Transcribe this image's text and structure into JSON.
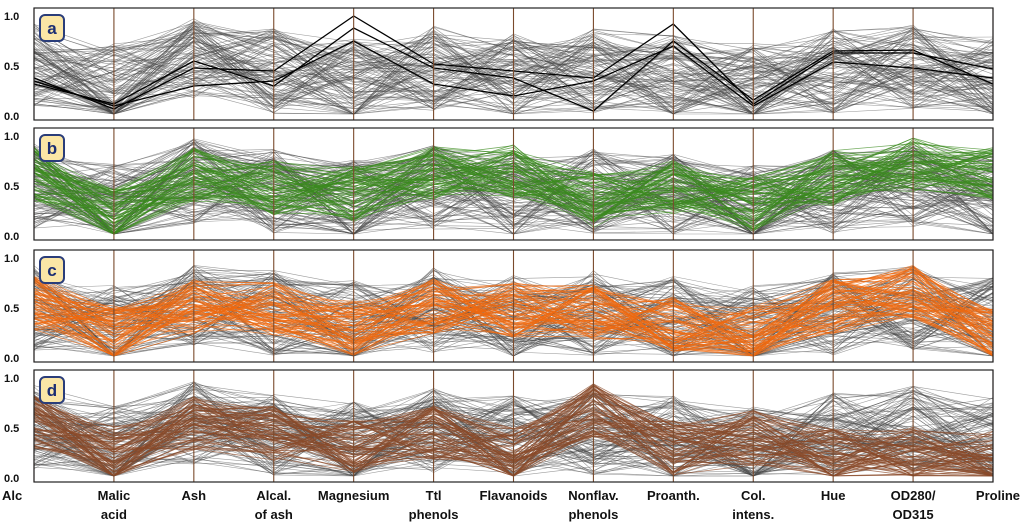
{
  "chart_data": {
    "type": "parallel-coordinates",
    "dimensions": [
      [
        "Alc"
      ],
      [
        "Malic",
        "acid"
      ],
      [
        "Ash"
      ],
      [
        "Alcal.",
        "of ash"
      ],
      [
        "Magnesium"
      ],
      [
        "Ttl",
        "phenols"
      ],
      [
        "Flavanoids"
      ],
      [
        "Nonflav.",
        "phenols"
      ],
      [
        "Proanth."
      ],
      [
        "Col.",
        "intens."
      ],
      [
        "Hue"
      ],
      [
        "OD280/",
        "OD315"
      ],
      [
        "Proline"
      ]
    ],
    "ylim": [
      0.0,
      1.0
    ],
    "yticks": [
      "0.0",
      "0.5",
      "1.0"
    ],
    "colors": {
      "context": "#4a4a4a",
      "green": "#3a8a1e",
      "orange": "#f06a10",
      "brown": "#8a4a2a",
      "black": "#000000",
      "badge_fill": "#fbe6a6",
      "badge_border": "#2a3d7a"
    },
    "panels": [
      {
        "label": "a",
        "highlight_color": "#000000",
        "highlight_series": [
          [
            0.38,
            0.07,
            0.48,
            0.45,
            1.0,
            0.52,
            0.45,
            0.38,
            0.92,
            0.12,
            0.63,
            0.63,
            0.47
          ],
          [
            0.32,
            0.12,
            0.55,
            0.3,
            0.88,
            0.48,
            0.38,
            0.05,
            0.75,
            0.16,
            0.65,
            0.66,
            0.32
          ],
          [
            0.35,
            0.1,
            0.3,
            0.35,
            0.75,
            0.32,
            0.2,
            0.35,
            0.7,
            0.1,
            0.54,
            0.48,
            0.38
          ]
        ],
        "highlight_profile": []
      },
      {
        "label": "b",
        "highlight_color": "#3a8a1e",
        "highlight_series": [],
        "highlight_profile": [
          0.62,
          0.2,
          0.62,
          0.48,
          0.42,
          0.62,
          0.65,
          0.36,
          0.48,
          0.32,
          0.58,
          0.72,
          0.62
        ]
      },
      {
        "label": "c",
        "highlight_color": "#f06a10",
        "highlight_series": [],
        "highlight_profile": [
          0.55,
          0.25,
          0.52,
          0.5,
          0.3,
          0.52,
          0.48,
          0.46,
          0.34,
          0.24,
          0.52,
          0.66,
          0.22
        ]
      },
      {
        "label": "d",
        "highlight_color": "#8a4a2a",
        "highlight_series": [],
        "highlight_profile": [
          0.55,
          0.25,
          0.55,
          0.45,
          0.3,
          0.45,
          0.22,
          0.68,
          0.3,
          0.4,
          0.22,
          0.24,
          0.2
        ]
      }
    ],
    "context_profile": [
      0.5,
      0.3,
      0.55,
      0.45,
      0.35,
      0.48,
      0.4,
      0.45,
      0.4,
      0.3,
      0.45,
      0.5,
      0.38
    ]
  }
}
